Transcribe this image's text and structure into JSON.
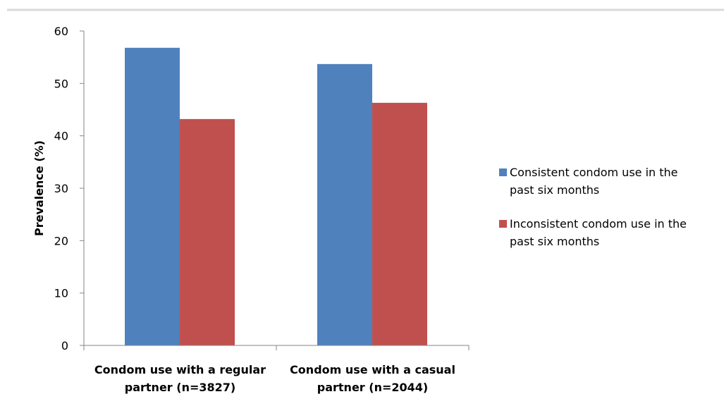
{
  "chart_data": {
    "type": "bar",
    "title": "",
    "xlabel": "",
    "ylabel": "Prevalence (%)",
    "ylim": [
      0,
      60
    ],
    "yticks": [
      0,
      10,
      20,
      30,
      40,
      50,
      60
    ],
    "categories": [
      [
        "Condom use with a regular",
        "partner (n=3827)"
      ],
      [
        "Condom use with a casual",
        "partner (n=2044)"
      ]
    ],
    "series": [
      {
        "name": [
          "Consistent condom use in the",
          "past six months"
        ],
        "color": "#4f81bd",
        "values": [
          56.8,
          53.7
        ]
      },
      {
        "name": [
          "Inconsistent condom use in the",
          "past six months"
        ],
        "color": "#c0504d",
        "values": [
          43.2,
          46.3
        ]
      }
    ],
    "legend_position": "right",
    "grid": false
  }
}
